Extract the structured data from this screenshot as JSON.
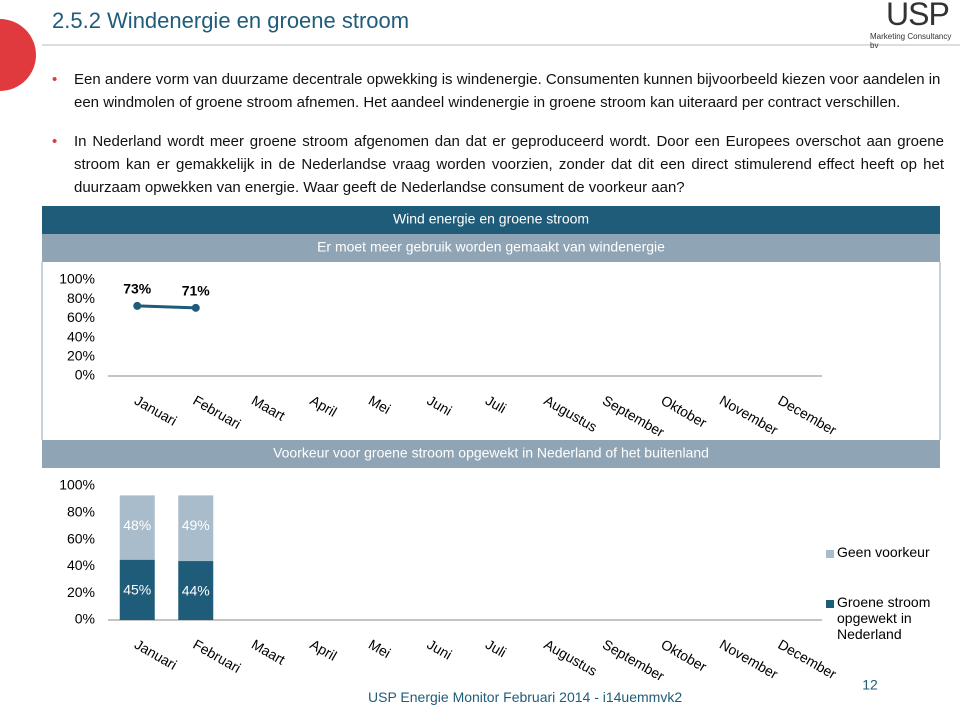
{
  "header": {
    "title": "2.5.2 Windenergie en groene stroom",
    "logo": "USP",
    "logo_subtitle": "Marketing Consultancy bv"
  },
  "bullets": [
    "Een andere vorm van duurzame decentrale opwekking is windenergie. Consumenten kunnen bijvoorbeeld kiezen voor aandelen in een windmolen of groene stroom afnemen. Het aandeel windenergie in groene stroom kan uiteraard per contract verschillen.",
    "In Nederland wordt meer groene stroom afgenomen dan dat er geproduceerd wordt. Door een Europees overschot aan groene stroom kan er gemakkelijk in de Nederlandse vraag worden voorzien, zonder dat dit een direct stimulerend effect heeft op het duurzaam opwekken van energie. Waar geeft de Nederlandse consument de voorkeur aan?"
  ],
  "chart_data": [
    {
      "type": "line",
      "title": "Wind energie en groene stroom",
      "subtitle": "Er moet meer gebruik worden gemaakt van windenergie",
      "categories": [
        "Januari",
        "Februari",
        "Maart",
        "April",
        "Mei",
        "Juni",
        "Juli",
        "Augustus",
        "September",
        "Oktober",
        "November",
        "December"
      ],
      "series": [
        {
          "name": "Er moet meer gebruik worden gemaakt van windenergie",
          "color": "#1f5c7a",
          "values": [
            73,
            71,
            null,
            null,
            null,
            null,
            null,
            null,
            null,
            null,
            null,
            null
          ],
          "value_labels": [
            "73%",
            "71%",
            null,
            null,
            null,
            null,
            null,
            null,
            null,
            null,
            null,
            null
          ]
        }
      ],
      "ylim": [
        0,
        100
      ],
      "yticks": [
        {
          "value": 0,
          "label": "0%"
        },
        {
          "value": 20,
          "label": "20%"
        },
        {
          "value": 40,
          "label": "40%"
        },
        {
          "value": 60,
          "label": "60%"
        },
        {
          "value": 80,
          "label": "80%"
        },
        {
          "value": 100,
          "label": "100%"
        }
      ]
    },
    {
      "type": "stacked_bar",
      "title": "Voorkeur voor groene stroom opgewekt in Nederland of het buitenland",
      "categories": [
        "Januari",
        "Februari",
        "Maart",
        "April",
        "Mei",
        "Juni",
        "Juli",
        "Augustus",
        "September",
        "Oktober",
        "November",
        "December"
      ],
      "series": [
        {
          "name": "Groene stroom opgewekt in Nederland",
          "color": "#1f5c7a",
          "values": [
            45,
            44,
            null,
            null,
            null,
            null,
            null,
            null,
            null,
            null,
            null,
            null
          ],
          "value_labels": [
            "45%",
            "44%",
            null,
            null,
            null,
            null,
            null,
            null,
            null,
            null,
            null,
            null
          ]
        },
        {
          "name": "Geen voorkeur",
          "color": "#a9bccb",
          "values": [
            48,
            49,
            null,
            null,
            null,
            null,
            null,
            null,
            null,
            null,
            null,
            null
          ],
          "value_labels": [
            "48%",
            "49%",
            null,
            null,
            null,
            null,
            null,
            null,
            null,
            null,
            null,
            null
          ]
        }
      ],
      "ylim": [
        0,
        100
      ],
      "yticks": [
        {
          "value": 0,
          "label": "0%"
        },
        {
          "value": 20,
          "label": "20%"
        },
        {
          "value": 40,
          "label": "40%"
        },
        {
          "value": 60,
          "label": "60%"
        },
        {
          "value": 80,
          "label": "80%"
        },
        {
          "value": 100,
          "label": "100%"
        }
      ]
    }
  ],
  "footer": {
    "text": "USP Energie Monitor Februari 2014 - i14uemmvk2",
    "page": "12"
  }
}
